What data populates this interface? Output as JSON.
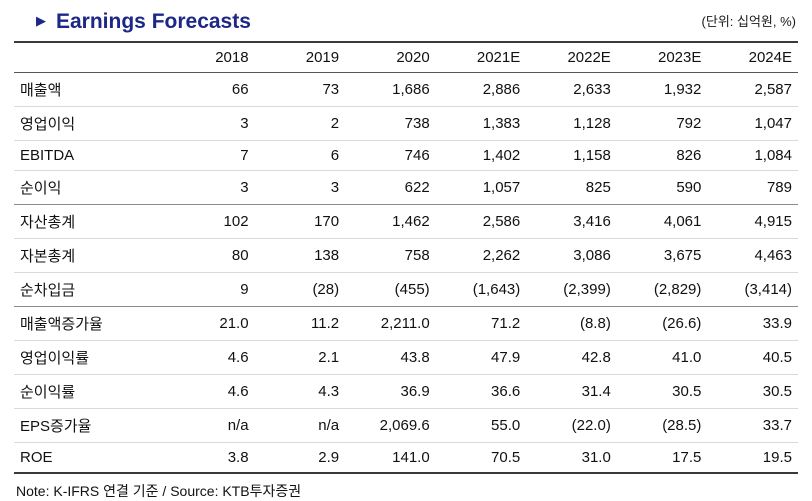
{
  "header": {
    "bullet": "▶",
    "title": "Earnings Forecasts",
    "unit": "(단위: 십억원, %)"
  },
  "table": {
    "columns": [
      "",
      "2018",
      "2019",
      "2020",
      "2021E",
      "2022E",
      "2023E",
      "2024E"
    ],
    "sections": [
      {
        "rows": [
          {
            "label": "매출액",
            "values": [
              "66",
              "73",
              "1,686",
              "2,886",
              "2,633",
              "1,932",
              "2,587"
            ]
          },
          {
            "label": "영업이익",
            "values": [
              "3",
              "2",
              "738",
              "1,383",
              "1,128",
              "792",
              "1,047"
            ]
          },
          {
            "label": "EBITDA",
            "values": [
              "7",
              "6",
              "746",
              "1,402",
              "1,158",
              "826",
              "1,084"
            ]
          },
          {
            "label": "순이익",
            "values": [
              "3",
              "3",
              "622",
              "1,057",
              "825",
              "590",
              "789"
            ]
          }
        ]
      },
      {
        "rows": [
          {
            "label": "자산총계",
            "values": [
              "102",
              "170",
              "1,462",
              "2,586",
              "3,416",
              "4,061",
              "4,915"
            ]
          },
          {
            "label": "자본총계",
            "values": [
              "80",
              "138",
              "758",
              "2,262",
              "3,086",
              "3,675",
              "4,463"
            ]
          },
          {
            "label": "순차입금",
            "values": [
              "9",
              "(28)",
              "(455)",
              "(1,643)",
              "(2,399)",
              "(2,829)",
              "(3,414)"
            ]
          }
        ]
      },
      {
        "rows": [
          {
            "label": "매출액증가율",
            "values": [
              "21.0",
              "11.2",
              "2,211.0",
              "71.2",
              "(8.8)",
              "(26.6)",
              "33.9"
            ]
          },
          {
            "label": "영업이익률",
            "values": [
              "4.6",
              "2.1",
              "43.8",
              "47.9",
              "42.8",
              "41.0",
              "40.5"
            ]
          },
          {
            "label": "순이익률",
            "values": [
              "4.6",
              "4.3",
              "36.9",
              "36.6",
              "31.4",
              "30.5",
              "30.5"
            ]
          },
          {
            "label": "EPS증가율",
            "values": [
              "n/a",
              "n/a",
              "2,069.6",
              "55.0",
              "(22.0)",
              "(28.5)",
              "33.7"
            ]
          },
          {
            "label": "ROE",
            "values": [
              "3.8",
              "2.9",
              "141.0",
              "70.5",
              "31.0",
              "17.5",
              "19.5"
            ]
          }
        ]
      }
    ]
  },
  "footer": {
    "note": "Note: K-IFRS 연결 기준 / Source: KTB투자증권"
  },
  "colors": {
    "accent_navy": "#1c2786"
  }
}
